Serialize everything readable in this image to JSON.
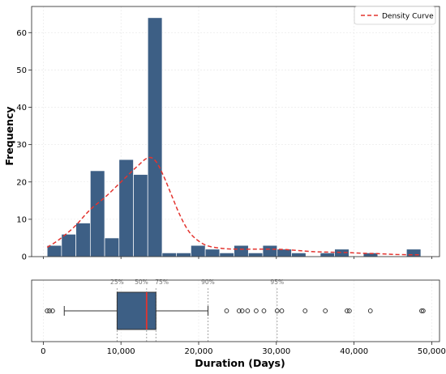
{
  "chart_data": {
    "type": "bar",
    "xlabel": "Duration (Days)",
    "ylabel": "Frequency",
    "xlim": [
      -1500,
      51000
    ],
    "ylim": [
      0,
      67
    ],
    "x_ticks": [
      0,
      10000,
      20000,
      30000,
      40000,
      50000
    ],
    "x_tick_labels": [
      "0",
      "10,000",
      "20,000",
      "30,000",
      "40,000",
      "50,000"
    ],
    "y_ticks": [
      0,
      10,
      20,
      30,
      40,
      50,
      60
    ],
    "y_tick_labels": [
      "0",
      "10",
      "20",
      "30",
      "40",
      "50",
      "60"
    ],
    "grid": true,
    "legend": {
      "position": "top-right",
      "entries": [
        "Density Curve"
      ]
    },
    "histogram": {
      "bin_edges": [
        500,
        2350,
        4200,
        6050,
        7900,
        9750,
        11600,
        13450,
        15300,
        17150,
        19000,
        20850,
        22700,
        24550,
        26400,
        28250,
        30100,
        31950,
        33800,
        35650,
        37500,
        39350,
        41200,
        43050,
        44900,
        46750,
        48600
      ],
      "counts": [
        3,
        6,
        9,
        23,
        5,
        26,
        22,
        64,
        1,
        1,
        3,
        2,
        1,
        3,
        1,
        3,
        2,
        1,
        0,
        1,
        2,
        0,
        1,
        0,
        0,
        2
      ],
      "color": "#3d5f85"
    },
    "density_curve": {
      "name": "Density Curve",
      "color": "#e3342f",
      "x": [
        500,
        2000,
        4000,
        6000,
        8000,
        10000,
        12000,
        13500,
        14500,
        15500,
        16500,
        17500,
        18500,
        19500,
        21000,
        23000,
        25000,
        27000,
        29000,
        31000,
        33000,
        35000,
        37000,
        39000,
        41000,
        43000,
        45000,
        47000,
        48600
      ],
      "y": [
        2.5,
        4.5,
        8,
        12.5,
        16,
        20,
        24,
        26.5,
        25.5,
        21.5,
        16.5,
        11.5,
        7.5,
        5,
        3,
        2.2,
        2,
        2,
        2,
        1.9,
        1.6,
        1.3,
        1.2,
        1.1,
        0.9,
        0.8,
        0.6,
        0.5,
        0.5
      ]
    },
    "boxplot": {
      "whisker_low": 2700,
      "q1": 9500,
      "median": 13300,
      "q3": 14500,
      "whisker_high": 21200,
      "box_color": "#3d5f85",
      "median_color": "#e3342f",
      "outliers": [
        500,
        800,
        1200,
        23600,
        25200,
        25600,
        26300,
        27400,
        28400,
        30100,
        30700,
        33700,
        36300,
        39100,
        39400,
        42100,
        48700,
        48900
      ]
    },
    "percentiles": [
      {
        "label": "25%",
        "value": 9500
      },
      {
        "label": "50%",
        "value": 13300
      },
      {
        "label": "75%",
        "value": 14500
      },
      {
        "label": "90%",
        "value": 21200
      },
      {
        "label": "95%",
        "value": 30100
      }
    ]
  }
}
